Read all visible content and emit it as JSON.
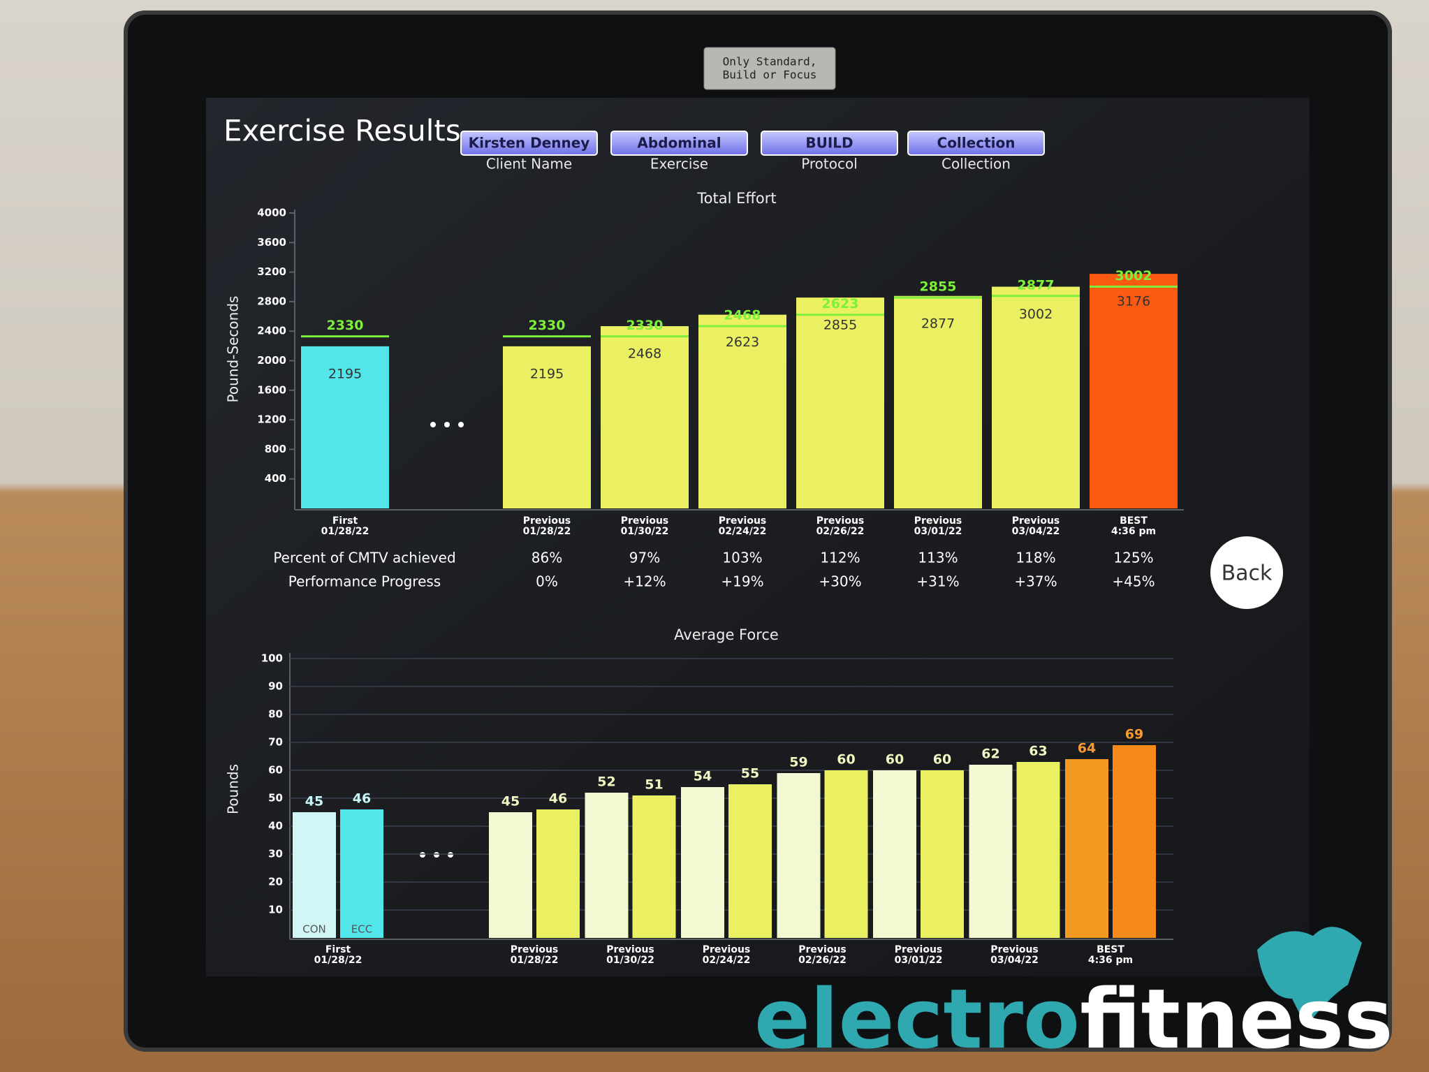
{
  "sticker": [
    "Only Standard,",
    "Build or Focus"
  ],
  "header": {
    "title": "Exercise Results",
    "fields": [
      {
        "value": "Kirsten Denney",
        "label": "Client Name"
      },
      {
        "value": "Abdominal",
        "label": "Exercise"
      },
      {
        "value": "BUILD",
        "label": "Protocol"
      },
      {
        "value": "Collection",
        "label": "Collection"
      }
    ]
  },
  "back_button": "Back",
  "logo": {
    "part1": "electro",
    "part2": "fitness"
  },
  "chart_data": [
    {
      "type": "bar",
      "title": "Total Effort",
      "y_label": "Pound-Seconds",
      "categories": [
        [
          "First",
          "01/28/22"
        ],
        [
          "Previous",
          "01/28/22"
        ],
        [
          "Previous",
          "01/30/22"
        ],
        [
          "Previous",
          "02/24/22"
        ],
        [
          "Previous",
          "02/26/22"
        ],
        [
          "Previous",
          "03/01/22"
        ],
        [
          "Previous",
          "03/04/22"
        ],
        [
          "BEST",
          "4:36 pm"
        ]
      ],
      "values": [
        2195,
        2195,
        2468,
        2623,
        2855,
        2877,
        3002,
        3176
      ],
      "colors": [
        "#52e6ea",
        "#eaf062",
        "#eaf062",
        "#eaf062",
        "#eaf062",
        "#eaf062",
        "#eaf062",
        "#fa5a12"
      ],
      "targets": [
        2330,
        2330,
        2330,
        2468,
        2623,
        2855,
        2877,
        3002
      ],
      "target_color": "#7cf03a",
      "ylim": [
        0,
        4000
      ],
      "yticks": [
        400,
        800,
        1200,
        1600,
        2000,
        2400,
        2800,
        3200,
        3600,
        4000
      ],
      "rows": [
        {
          "label": "Percent of CMTV achieved",
          "values": [
            null,
            "86%",
            "97%",
            "103%",
            "112%",
            "113%",
            "118%",
            "125%"
          ]
        },
        {
          "label": "Performance Progress",
          "values": [
            null,
            "0%",
            "+12%",
            "+19%",
            "+30%",
            "+31%",
            "+37%",
            "+45%"
          ]
        }
      ]
    },
    {
      "type": "grouped_bar",
      "title": "Average Force",
      "y_label": "Pounds",
      "categories": [
        [
          "First",
          "01/28/22"
        ],
        [
          "Previous",
          "01/28/22"
        ],
        [
          "Previous",
          "01/30/22"
        ],
        [
          "Previous",
          "02/24/22"
        ],
        [
          "Previous",
          "02/26/22"
        ],
        [
          "Previous",
          "03/01/22"
        ],
        [
          "Previous",
          "03/04/22"
        ],
        [
          "BEST",
          "4:36 pm"
        ]
      ],
      "series": [
        {
          "name": "CON",
          "values": [
            45,
            45,
            52,
            54,
            59,
            60,
            62,
            64
          ],
          "colors": [
            "#d2f6f6",
            "#f2f8d2",
            "#f2f8d2",
            "#f2f8d2",
            "#f2f8d2",
            "#f2f8d2",
            "#f2f8d2",
            "#f39a22"
          ]
        },
        {
          "name": "ECC",
          "values": [
            46,
            46,
            51,
            55,
            60,
            60,
            63,
            69
          ],
          "colors": [
            "#52e6ea",
            "#eaf062",
            "#eaf062",
            "#eaf062",
            "#eaf062",
            "#eaf062",
            "#eaf062",
            "#f5891c"
          ]
        }
      ],
      "label_colors": [
        "#c8f6f6",
        "#f2f6c0",
        "#f2f6c0",
        "#f2f6c0",
        "#f2f6c0",
        "#f2f6c0",
        "#f2f6c0",
        "#f89a30"
      ],
      "ylim": [
        0,
        100
      ],
      "yticks": [
        10,
        20,
        30,
        40,
        50,
        60,
        70,
        80,
        90,
        100
      ],
      "grid": true
    }
  ]
}
